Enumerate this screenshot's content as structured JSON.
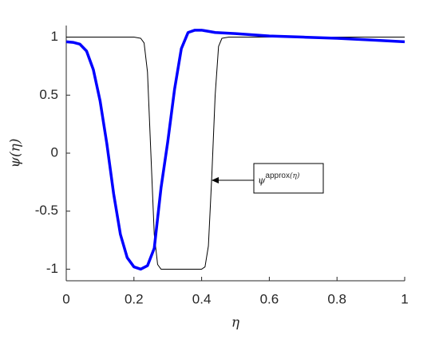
{
  "chart_data": {
    "type": "line",
    "xlabel": "η",
    "ylabel": "ψ(η)",
    "annotation": {
      "base": "ψ",
      "sup": "approx",
      "tail": "(η)"
    },
    "xlim": [
      0,
      1
    ],
    "ylim": [
      -1.1,
      1.1
    ],
    "xticks": [
      0,
      0.2,
      0.4,
      0.6,
      0.8,
      1
    ],
    "yticks": [
      -1,
      -0.5,
      0,
      0.5,
      1
    ],
    "series": [
      {
        "color": "#0000ff",
        "width": 3.5,
        "x": [
          0,
          0.02,
          0.04,
          0.06,
          0.08,
          0.1,
          0.12,
          0.14,
          0.16,
          0.18,
          0.2,
          0.22,
          0.24,
          0.26,
          0.28,
          0.3,
          0.32,
          0.34,
          0.36,
          0.38,
          0.4,
          0.42,
          0.44,
          0.5,
          0.6,
          0.7,
          0.8,
          0.9,
          1
        ],
        "values": [
          0.96,
          0.955,
          0.94,
          0.88,
          0.72,
          0.45,
          0.08,
          -0.35,
          -0.7,
          -0.9,
          -0.98,
          -1,
          -0.97,
          -0.82,
          -0.3,
          0.1,
          0.55,
          0.9,
          1.04,
          1.06,
          1.06,
          1.05,
          1.04,
          1.03,
          1.01,
          1,
          0.99,
          0.975,
          0.96
        ]
      },
      {
        "color": "#000000",
        "width": 1,
        "x": [
          0,
          0.2,
          0.22,
          0.23,
          0.24,
          0.25,
          0.26,
          0.27,
          0.28,
          0.4,
          0.41,
          0.42,
          0.43,
          0.44,
          0.45,
          0.46,
          0.48,
          1
        ],
        "values": [
          1,
          1,
          0.99,
          0.95,
          0.7,
          0,
          -0.7,
          -0.96,
          -1,
          -1,
          -0.98,
          -0.8,
          -0.2,
          0.5,
          0.92,
          0.99,
          1,
          1
        ]
      }
    ]
  }
}
